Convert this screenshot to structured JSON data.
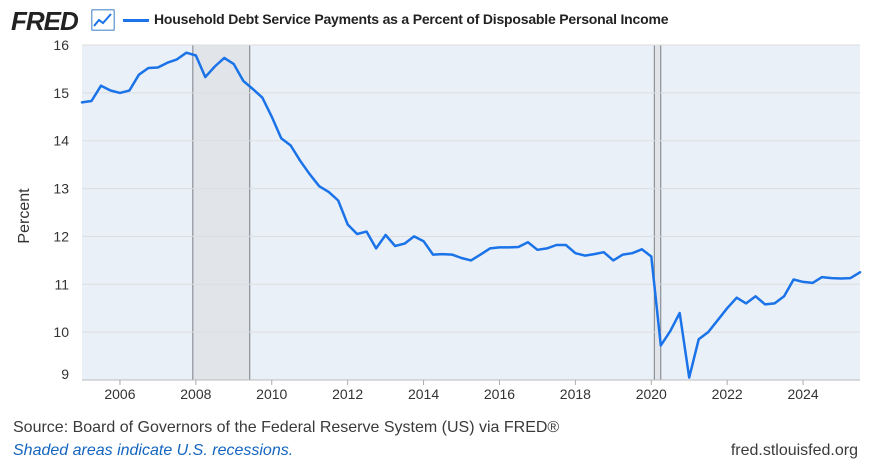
{
  "header": {
    "logo": "FRED",
    "logo_icon": "trend-line-icon"
  },
  "colors": {
    "series": "#1a73e8",
    "recession": "#e1e5ea",
    "grid": "#dddddd",
    "background": "#eaf0f8"
  },
  "footer": {
    "source": "Source: Board of Governors of the Federal Reserve System (US) via FRED®",
    "note": "Shaded areas indicate U.S. recessions.",
    "site": "fred.stlouisfed.org"
  },
  "chart_data": {
    "type": "line",
    "title": "Household Debt Service Payments as a Percent of Disposable Personal Income",
    "xlabel": "",
    "ylabel": "Percent",
    "xlim": [
      2005.0,
      2025.5
    ],
    "ylim": [
      9,
      16
    ],
    "yticks": [
      9,
      10,
      11,
      12,
      13,
      14,
      15,
      16
    ],
    "xticks": [
      2006,
      2008,
      2010,
      2012,
      2014,
      2016,
      2018,
      2020,
      2022,
      2024
    ],
    "grid": true,
    "recessions": [
      [
        2007.92,
        2009.42
      ],
      [
        2020.08,
        2020.25
      ]
    ],
    "series": [
      {
        "name": "Household Debt Service Payments as a Percent of Disposable Personal Income",
        "x": [
          2005.0,
          2005.25,
          2005.5,
          2005.75,
          2006.0,
          2006.25,
          2006.5,
          2006.75,
          2007.0,
          2007.25,
          2007.5,
          2007.75,
          2008.0,
          2008.25,
          2008.5,
          2008.75,
          2009.0,
          2009.25,
          2009.5,
          2009.75,
          2010.0,
          2010.25,
          2010.5,
          2010.75,
          2011.0,
          2011.25,
          2011.5,
          2011.75,
          2012.0,
          2012.25,
          2012.5,
          2012.75,
          2013.0,
          2013.25,
          2013.5,
          2013.75,
          2014.0,
          2014.25,
          2014.5,
          2014.75,
          2015.0,
          2015.25,
          2015.5,
          2015.75,
          2016.0,
          2016.25,
          2016.5,
          2016.75,
          2017.0,
          2017.25,
          2017.5,
          2017.75,
          2018.0,
          2018.25,
          2018.5,
          2018.75,
          2019.0,
          2019.25,
          2019.5,
          2019.75,
          2020.0,
          2020.25,
          2020.5,
          2020.75,
          2021.0,
          2021.25,
          2021.5,
          2021.75,
          2022.0,
          2022.25,
          2022.5,
          2022.75,
          2023.0,
          2023.25,
          2023.5,
          2023.75,
          2024.0,
          2024.25,
          2024.5,
          2024.75,
          2025.0,
          2025.25,
          2025.5
        ],
        "values": [
          14.8,
          14.83,
          15.15,
          15.05,
          15.0,
          15.05,
          15.38,
          15.52,
          15.53,
          15.63,
          15.7,
          15.84,
          15.78,
          15.33,
          15.55,
          15.73,
          15.6,
          15.25,
          15.08,
          14.9,
          14.5,
          14.05,
          13.9,
          13.58,
          13.3,
          13.05,
          12.93,
          12.75,
          12.25,
          12.05,
          12.1,
          11.75,
          12.03,
          11.8,
          11.85,
          12.0,
          11.9,
          11.62,
          11.63,
          11.62,
          11.55,
          11.5,
          11.62,
          11.75,
          11.77,
          11.77,
          11.78,
          11.88,
          11.72,
          11.75,
          11.82,
          11.82,
          11.65,
          11.6,
          11.63,
          11.67,
          11.5,
          11.62,
          11.65,
          11.73,
          11.58,
          9.72,
          10.02,
          10.4,
          9.05,
          9.85,
          10.0,
          10.25,
          10.5,
          10.72,
          10.6,
          10.75,
          10.58,
          10.6,
          10.75,
          11.1,
          11.05,
          11.03,
          11.15,
          11.13,
          11.12,
          11.13,
          11.25
        ]
      }
    ]
  }
}
